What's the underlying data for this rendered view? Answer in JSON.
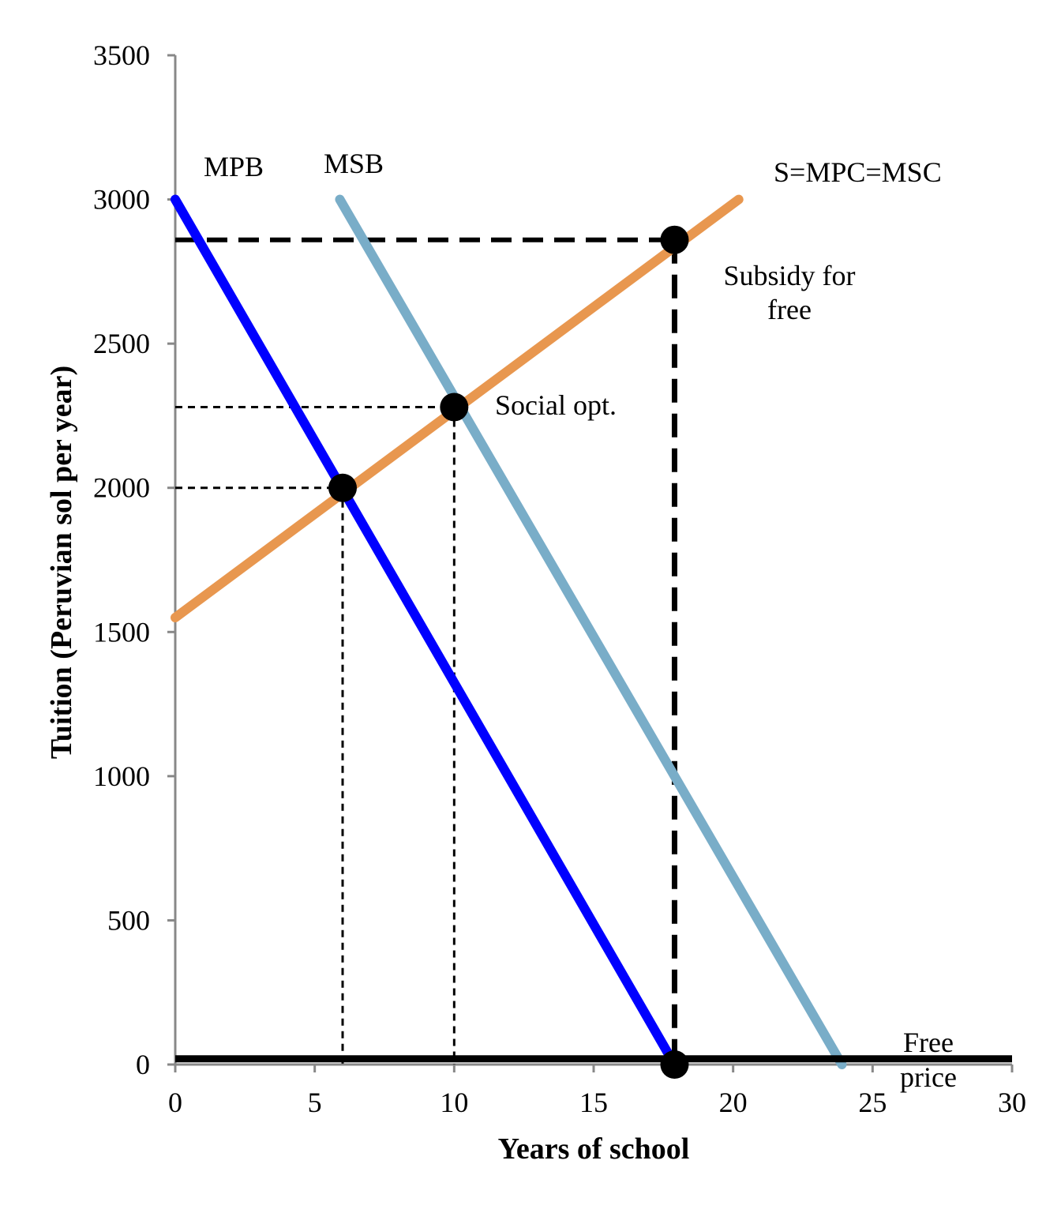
{
  "chart_data": {
    "type": "line",
    "title": "",
    "xlabel": "Years of school",
    "ylabel": "Tuition (Peruvian sol per year)",
    "xlim": [
      0,
      30
    ],
    "ylim": [
      0,
      3500
    ],
    "x_ticks": [
      "0",
      "5",
      "10",
      "15",
      "20",
      "25",
      "30"
    ],
    "y_ticks": [
      "0",
      "500",
      "1000",
      "1500",
      "2000",
      "2500",
      "3000",
      "3500"
    ],
    "grid": false,
    "legend": "none",
    "series": [
      {
        "name": "MPB",
        "color": "#0000ff",
        "x": [
          0,
          17.9
        ],
        "y": [
          3000,
          0
        ]
      },
      {
        "name": "MSB",
        "color": "#79adc8",
        "x": [
          5.9,
          23.9
        ],
        "y": [
          3000,
          0
        ]
      },
      {
        "name": "S=MPC=MSC",
        "color": "#e8974f",
        "x": [
          0,
          20.2
        ],
        "y": [
          1550,
          3000
        ]
      },
      {
        "name": "",
        "color": "#000000",
        "x": [
          0,
          30
        ],
        "y": [
          20,
          20
        ]
      }
    ],
    "points": [
      {
        "x": 6,
        "y": 2000,
        "label": ""
      },
      {
        "x": 10,
        "y": 2280,
        "label": "Social opt."
      },
      {
        "x": 17.9,
        "y": 2860,
        "label": "Subsidy for free"
      },
      {
        "x": 17.9,
        "y": 0,
        "label": "Free price"
      }
    ],
    "annotations": {
      "mpb": "MPB",
      "msb": "MSB",
      "supply": "S=MPC=MSC",
      "social_opt": "Social opt.",
      "subsidy_line1": "Subsidy for",
      "subsidy_line2": "free",
      "free_line1": "Free",
      "free_line2": "price"
    }
  }
}
